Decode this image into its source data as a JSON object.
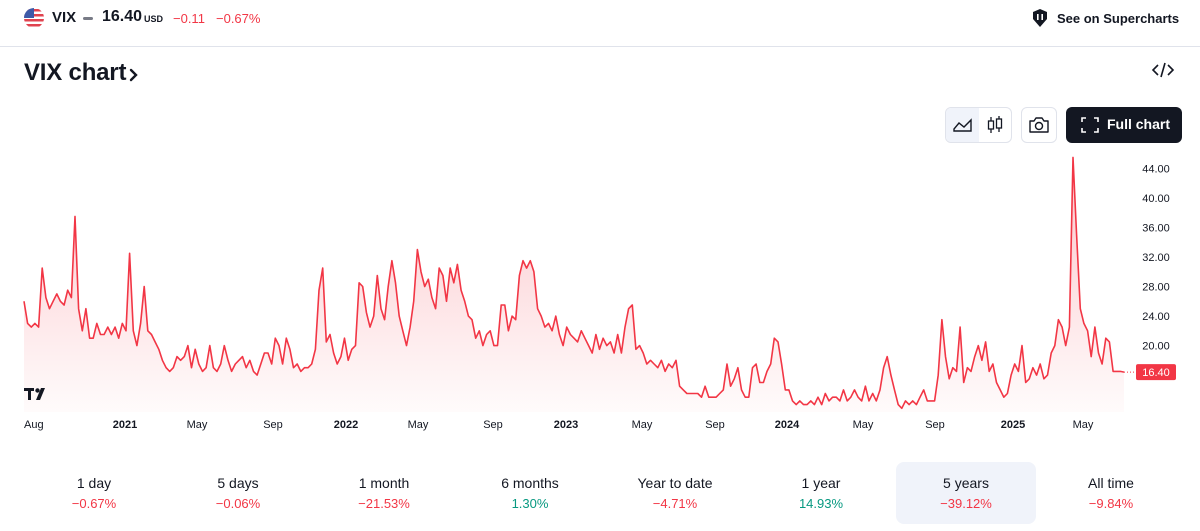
{
  "header": {
    "symbol": "VIX",
    "price": "16.40",
    "currency": "USD",
    "change": "−0.11",
    "change_percent": "−0.67%",
    "supercharts_label": "See on Supercharts",
    "country_icon": "us-flag-icon",
    "supercharts_icon": "supercharts-icon"
  },
  "title": {
    "text": "VIX chart",
    "icon": "chevron-right-icon"
  },
  "toolbar": {
    "embed_icon": "code-icon",
    "line_icon": "line-chart-icon",
    "candle_icon": "candlestick-icon",
    "screenshot_icon": "camera-icon",
    "full_chart_label": "Full chart",
    "full_chart_icon": "fullscreen-icon"
  },
  "chart_data": {
    "type": "area",
    "series": [
      {
        "values": [
          26.0,
          23.0,
          22.5,
          23.0,
          22.5,
          30.5,
          26.5,
          25.0,
          26.0,
          27.0,
          26.0,
          25.5,
          27.5,
          26.5,
          37.5,
          25.0,
          22.0,
          25.0,
          21.0,
          21.0,
          23.0,
          21.5,
          21.5,
          22.5,
          21.5,
          22.5,
          21.0,
          23.0,
          22.0,
          32.5,
          22.0,
          20.0,
          23.0,
          28.0,
          22.0,
          21.5,
          20.5,
          19.5,
          18.0,
          17.0,
          16.5,
          17.0,
          18.5,
          18.0,
          18.5,
          20.0,
          17.0,
          19.5,
          17.5,
          16.5,
          17.0,
          20.0,
          17.0,
          16.5,
          17.5,
          20.0,
          18.0,
          16.5,
          17.5,
          18.0,
          18.5,
          17.0,
          18.0,
          16.5,
          16.0,
          17.5,
          19.0,
          19.0,
          17.5,
          21.0,
          20.0,
          17.5,
          21.0,
          19.5,
          17.0,
          17.5,
          16.5,
          17.0,
          17.0,
          17.5,
          19.5,
          27.5,
          30.5,
          20.5,
          21.5,
          19.0,
          17.5,
          18.5,
          21.0,
          18.0,
          19.5,
          20.0,
          28.5,
          28.0,
          24.5,
          22.5,
          24.0,
          29.5,
          25.0,
          23.5,
          28.0,
          31.5,
          28.5,
          24.0,
          22.0,
          20.0,
          22.5,
          26.0,
          33.0,
          30.0,
          28.0,
          29.0,
          26.5,
          25.0,
          30.5,
          29.5,
          26.0,
          30.5,
          28.5,
          31.0,
          27.5,
          26.0,
          24.0,
          23.5,
          21.0,
          22.0,
          20.0,
          21.5,
          22.0,
          20.0,
          20.0,
          25.5,
          25.5,
          22.0,
          24.0,
          23.5,
          29.5,
          31.5,
          30.5,
          31.5,
          30.0,
          25.0,
          24.0,
          22.5,
          23.0,
          22.0,
          24.0,
          21.5,
          20.0,
          22.5,
          21.5,
          21.0,
          20.5,
          22.0,
          21.0,
          20.0,
          19.0,
          21.5,
          19.5,
          21.0,
          20.0,
          20.5,
          19.0,
          21.5,
          19.0,
          22.5,
          25.0,
          25.5,
          19.5,
          20.0,
          19.0,
          17.5,
          18.0,
          17.5,
          17.0,
          18.0,
          16.5,
          17.5,
          17.0,
          18.0,
          14.5,
          14.0,
          13.5,
          13.5,
          13.5,
          13.5,
          13.0,
          14.5,
          13.0,
          13.0,
          13.0,
          13.5,
          14.0,
          17.5,
          14.5,
          15.5,
          17.0,
          14.0,
          13.0,
          13.0,
          17.0,
          17.5,
          15.0,
          15.0,
          16.5,
          17.5,
          21.0,
          20.5,
          17.5,
          14.0,
          14.0,
          12.5,
          12.0,
          12.5,
          12.0,
          12.0,
          12.5,
          12.0,
          13.0,
          12.0,
          13.5,
          12.5,
          13.0,
          13.0,
          12.5,
          14.0,
          12.5,
          13.0,
          14.0,
          13.0,
          12.5,
          14.5,
          12.5,
          13.5,
          12.5,
          14.0,
          17.0,
          18.5,
          16.0,
          14.0,
          12.0,
          11.5,
          12.5,
          12.0,
          12.5,
          12.0,
          13.0,
          14.0,
          12.5,
          12.5,
          12.5,
          16.0,
          23.5,
          18.5,
          15.5,
          17.0,
          16.5,
          22.5,
          15.0,
          17.0,
          16.5,
          18.5,
          20.0,
          18.0,
          20.5,
          16.5,
          17.5,
          15.0,
          14.0,
          13.0,
          13.5,
          16.0,
          17.5,
          16.5,
          20.0,
          15.0,
          15.5,
          17.0,
          16.0,
          17.5,
          15.5,
          16.0,
          19.0,
          20.0,
          23.5,
          22.5,
          20.0,
          22.5,
          45.5,
          35.0,
          25.0,
          23.0,
          22.0,
          18.5,
          22.5,
          19.0,
          17.5,
          21.0,
          20.5,
          16.5,
          16.5,
          16.5,
          16.4
        ]
      }
    ],
    "x_tick_labels": [
      "Aug",
      "2021",
      "May",
      "Sep",
      "2022",
      "May",
      "Sep",
      "2023",
      "May",
      "Sep",
      "2024",
      "May",
      "Sep",
      "2025",
      "May"
    ],
    "x_tick_bold": [
      false,
      true,
      false,
      false,
      true,
      false,
      false,
      true,
      false,
      false,
      true,
      false,
      false,
      true,
      false
    ],
    "y_tick_labels": [
      "20.00",
      "24.00",
      "28.00",
      "32.00",
      "36.00",
      "40.00",
      "44.00"
    ],
    "y_ticks": [
      20,
      24,
      28,
      32,
      36,
      40,
      44
    ],
    "ylim": [
      11,
      46.5
    ],
    "last_value_label": "16.40",
    "line_color": "#f23645",
    "grid": false,
    "logo_icon": "tradingview-logo-icon"
  },
  "periods": [
    {
      "label": "1 day",
      "value": "−0.67%",
      "trend": "neg",
      "selected": false
    },
    {
      "label": "5 days",
      "value": "−0.06%",
      "trend": "neg",
      "selected": false
    },
    {
      "label": "1 month",
      "value": "−21.53%",
      "trend": "neg",
      "selected": false
    },
    {
      "label": "6 months",
      "value": "1.30%",
      "trend": "pos",
      "selected": false
    },
    {
      "label": "Year to date",
      "value": "−4.71%",
      "trend": "neg",
      "selected": false
    },
    {
      "label": "1 year",
      "value": "14.93%",
      "trend": "pos",
      "selected": false
    },
    {
      "label": "5 years",
      "value": "−39.12%",
      "trend": "neg",
      "selected": true
    },
    {
      "label": "All time",
      "value": "−9.84%",
      "trend": "neg",
      "selected": false
    }
  ],
  "colors": {
    "negative": "#f23645",
    "positive": "#089981",
    "text": "#131722",
    "selected_bg": "#f0f3fa"
  }
}
